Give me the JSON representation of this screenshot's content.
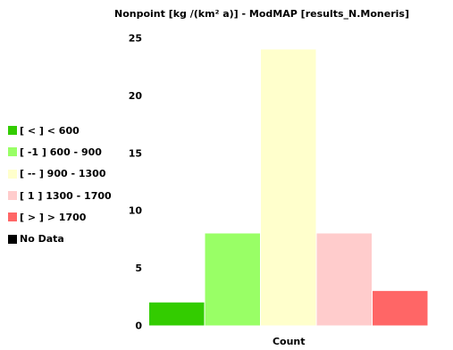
{
  "chart_data": {
    "type": "bar",
    "title": "Nonpoint [kg /(km² a)] - ModMAP [results_N.Moneris]",
    "xlabel": "Count",
    "ylabel": "",
    "ylim": [
      0,
      25
    ],
    "yticks": [
      "0",
      "5",
      "10",
      "15",
      "20",
      "25"
    ],
    "grid": false,
    "legend_position": "left",
    "categories": [
      "[ < ]  < 600",
      "[ -1 ]  600 - 900",
      "[ -- ]  900 - 1300",
      "[ 1 ]  1300 - 1700",
      "[ > ]  > 1700"
    ],
    "values": [
      2,
      8,
      24,
      8,
      3
    ],
    "colors": [
      "#33cc00",
      "#99ff66",
      "#ffffcc",
      "#ffcccc",
      "#ff6666"
    ]
  },
  "legend": {
    "items": [
      {
        "label": "[  <  ]  < 600",
        "color": "#33cc00"
      },
      {
        "label": "[ -1 ]  600 - 900",
        "color": "#99ff66"
      },
      {
        "label": "[ -- ]  900 - 1300",
        "color": "#ffffcc"
      },
      {
        "label": "[ 1 ]  1300 - 1700",
        "color": "#ffcccc"
      },
      {
        "label": "[ > ]  > 1700",
        "color": "#ff6666"
      },
      {
        "label": "No Data",
        "color": "#000000"
      }
    ]
  }
}
